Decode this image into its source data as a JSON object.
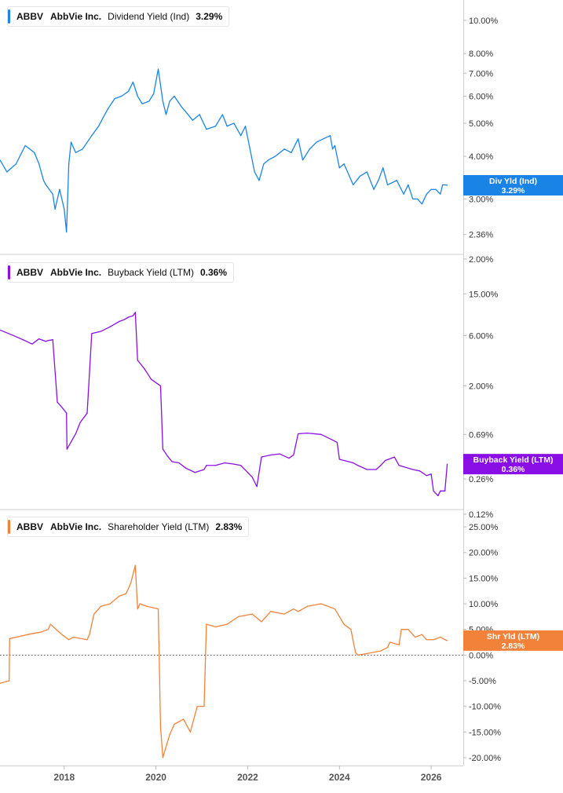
{
  "panels": [
    {
      "ticker": "ABBV",
      "company": "AbbVie Inc.",
      "metric": "Dividend Yield (Ind)",
      "value": "3.29%",
      "color": "#1a84e6",
      "badge": [
        "Div Yld (Ind)",
        "3.29%"
      ],
      "yticks": [
        "10.00%",
        "8.00%",
        "7.00%",
        "6.00%",
        "5.00%",
        "4.00%",
        "3.00%",
        "2.36%",
        "2.00%"
      ]
    },
    {
      "ticker": "ABBV",
      "company": "AbbVie Inc.",
      "metric": "Buyback Yield (LTM)",
      "value": "0.36%",
      "color": "#8a0fe6",
      "badge": [
        "Buyback Yield (LTM)",
        "0.36%"
      ],
      "yticks": [
        "15.00%",
        "6.00%",
        "2.00%",
        "0.69%",
        "0.26%",
        "0.12%"
      ]
    },
    {
      "ticker": "ABBV",
      "company": "AbbVie Inc.",
      "metric": "Shareholder Yield (LTM)",
      "value": "2.83%",
      "color": "#f2823a",
      "badge": [
        "Shr Yld (LTM)",
        "2.83%"
      ],
      "yticks": [
        "25.00%",
        "20.00%",
        "15.00%",
        "10.00%",
        "5.00%",
        "0.00%",
        "-5.00%",
        "-10.00%",
        "-15.00%",
        "-20.00%"
      ]
    }
  ],
  "xticks": [
    "2018",
    "2020",
    "2022",
    "2024",
    "2026"
  ],
  "chart_data": [
    {
      "type": "line",
      "title": "ABBV AbbVie Inc. Dividend Yield (Ind) 3.29%",
      "scale": "log",
      "ylim": [
        2.0,
        11.0
      ],
      "xlim": [
        2016.6,
        2026.7
      ],
      "series": [
        {
          "name": "Dividend Yield (Ind)",
          "x": [
            2016.6,
            2016.75,
            2016.95,
            2017.15,
            2017.35,
            2017.45,
            2017.55,
            2017.6,
            2017.75,
            2017.8,
            2017.9,
            2018.0,
            2018.05,
            2018.1,
            2018.15,
            2018.25,
            2018.4,
            2018.6,
            2018.75,
            2018.85,
            2018.95,
            2019.1,
            2019.25,
            2019.4,
            2019.5,
            2019.6,
            2019.7,
            2019.85,
            2019.95,
            2020.05,
            2020.15,
            2020.22,
            2020.3,
            2020.4,
            2020.55,
            2020.7,
            2020.8,
            2020.95,
            2021.1,
            2021.3,
            2021.45,
            2021.55,
            2021.7,
            2021.85,
            2021.95,
            2022.05,
            2022.15,
            2022.25,
            2022.35,
            2022.45,
            2022.6,
            2022.8,
            2022.95,
            2023.1,
            2023.2,
            2023.35,
            2023.5,
            2023.65,
            2023.8,
            2023.85,
            2023.9,
            2024.0,
            2024.1,
            2024.3,
            2024.45,
            2024.6,
            2024.75,
            2024.85,
            2024.95,
            2025.05,
            2025.25,
            2025.4,
            2025.5,
            2025.6,
            2025.7,
            2025.8,
            2025.9,
            2026.0,
            2026.1,
            2026.2,
            2026.25,
            2026.3,
            2026.35
          ],
          "values": [
            3.9,
            3.6,
            3.8,
            4.3,
            4.1,
            3.8,
            3.4,
            3.3,
            3.1,
            2.8,
            3.2,
            2.8,
            2.4,
            3.8,
            4.4,
            4.1,
            4.2,
            4.6,
            4.9,
            5.2,
            5.5,
            5.9,
            6.0,
            6.2,
            6.6,
            6.0,
            5.7,
            5.8,
            6.1,
            7.2,
            5.8,
            5.3,
            5.8,
            6.0,
            5.6,
            5.3,
            5.1,
            5.3,
            4.8,
            4.9,
            5.3,
            4.9,
            5.0,
            4.6,
            4.9,
            4.2,
            3.6,
            3.4,
            3.8,
            3.9,
            4.0,
            4.2,
            4.1,
            4.5,
            3.9,
            4.2,
            4.4,
            4.5,
            4.6,
            4.2,
            4.3,
            3.7,
            3.8,
            3.3,
            3.5,
            3.6,
            3.2,
            3.4,
            3.7,
            3.3,
            3.4,
            3.1,
            3.3,
            3.0,
            3.0,
            2.9,
            3.1,
            3.2,
            3.2,
            3.1,
            3.3,
            3.3,
            3.29
          ]
        }
      ]
    },
    {
      "type": "line",
      "title": "ABBV AbbVie Inc. Buyback Yield (LTM) 0.36%",
      "scale": "log",
      "ylim": [
        0.12,
        30.0
      ],
      "xlim": [
        2016.6,
        2026.7
      ],
      "series": [
        {
          "name": "Buyback Yield (LTM)",
          "x": [
            2016.6,
            2016.9,
            2017.1,
            2017.3,
            2017.45,
            2017.6,
            2017.65,
            2017.75,
            2017.85,
            2017.95,
            2018.05,
            2018.06,
            2018.25,
            2018.35,
            2018.5,
            2018.6,
            2018.8,
            2019.0,
            2019.2,
            2019.3,
            2019.4,
            2019.5,
            2019.55,
            2019.6,
            2019.75,
            2019.9,
            2020.1,
            2020.15,
            2020.25,
            2020.35,
            2020.5,
            2020.65,
            2020.85,
            2021.05,
            2021.1,
            2021.3,
            2021.5,
            2021.7,
            2021.85,
            2022.0,
            2022.1,
            2022.2,
            2022.3,
            2022.5,
            2022.7,
            2022.9,
            2023.0,
            2023.1,
            2023.3,
            2023.6,
            2023.85,
            2023.95,
            2024.0,
            2024.3,
            2024.4,
            2024.6,
            2024.8,
            2024.9,
            2025.0,
            2025.2,
            2025.3,
            2025.5,
            2025.6,
            2025.75,
            2025.9,
            2026.0,
            2026.05,
            2026.15,
            2026.2,
            2026.3,
            2026.35
          ],
          "values": [
            6.8,
            6.0,
            5.5,
            5.0,
            5.6,
            5.3,
            5.4,
            5.5,
            1.4,
            1.25,
            1.1,
            0.5,
            0.7,
            0.9,
            1.1,
            6.3,
            6.6,
            7.3,
            8.2,
            8.5,
            9.0,
            9.3,
            10.0,
            3.5,
            2.9,
            2.3,
            2.0,
            0.5,
            0.43,
            0.38,
            0.37,
            0.33,
            0.3,
            0.32,
            0.35,
            0.35,
            0.37,
            0.36,
            0.35,
            0.3,
            0.27,
            0.22,
            0.42,
            0.44,
            0.45,
            0.41,
            0.44,
            0.7,
            0.71,
            0.69,
            0.61,
            0.58,
            0.4,
            0.37,
            0.35,
            0.32,
            0.32,
            0.35,
            0.39,
            0.42,
            0.35,
            0.33,
            0.32,
            0.31,
            0.28,
            0.29,
            0.2,
            0.18,
            0.2,
            0.2,
            0.36
          ]
        }
      ]
    },
    {
      "type": "line",
      "title": "ABBV AbbVie Inc. Shareholder Yield (LTM) 2.83%",
      "ylim": [
        -22,
        27
      ],
      "xlim": [
        2016.6,
        2026.7
      ],
      "series": [
        {
          "name": "Shareholder Yield (LTM)",
          "x": [
            2016.6,
            2016.8,
            2016.81,
            2017.2,
            2017.5,
            2017.65,
            2017.7,
            2017.95,
            2018.1,
            2018.2,
            2018.5,
            2018.55,
            2018.65,
            2018.8,
            2019.0,
            2019.2,
            2019.35,
            2019.45,
            2019.55,
            2019.6,
            2019.65,
            2019.8,
            2020.05,
            2020.1,
            2020.15,
            2020.25,
            2020.3,
            2020.4,
            2020.6,
            2020.75,
            2020.9,
            2021.05,
            2021.1,
            2021.3,
            2021.55,
            2021.8,
            2022.1,
            2022.3,
            2022.5,
            2022.8,
            2023.0,
            2023.1,
            2023.3,
            2023.6,
            2023.9,
            2024.1,
            2024.25,
            2024.35,
            2024.4,
            2024.6,
            2024.9,
            2025.05,
            2025.1,
            2025.3,
            2025.35,
            2025.5,
            2025.65,
            2025.8,
            2025.9,
            2026.05,
            2026.2,
            2026.3,
            2026.35
          ],
          "values": [
            -5.5,
            -5.0,
            3.2,
            4.0,
            4.5,
            5.0,
            6.0,
            4.0,
            3.0,
            3.5,
            3.0,
            4.0,
            8.0,
            9.5,
            10.0,
            11.5,
            12.0,
            14.0,
            17.5,
            9.0,
            10.0,
            9.5,
            9.0,
            -14.0,
            -20.0,
            -17.0,
            -15.5,
            -13.5,
            -12.5,
            -15.0,
            -10.0,
            -10.0,
            6.0,
            5.5,
            6.0,
            7.5,
            8.0,
            6.5,
            8.5,
            8.0,
            9.0,
            8.5,
            9.5,
            10.0,
            9.0,
            6.0,
            5.0,
            0.5,
            0.0,
            0.3,
            0.8,
            1.5,
            2.5,
            2.0,
            5.0,
            5.0,
            3.5,
            4.0,
            3.0,
            3.0,
            3.5,
            3.0,
            2.83
          ]
        }
      ]
    }
  ]
}
